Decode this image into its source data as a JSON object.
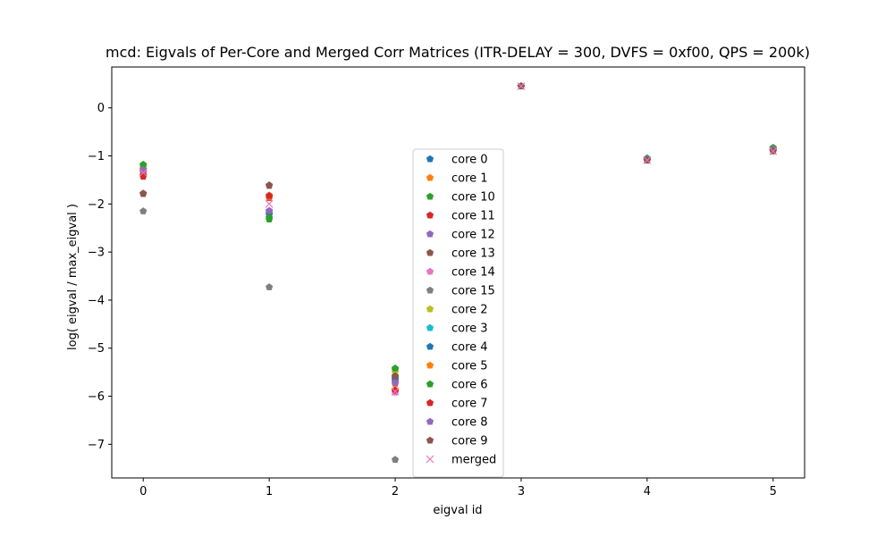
{
  "chart_data": {
    "type": "scatter",
    "title": "mcd: Eigvals of Per-Core and Merged Corr Matrices (ITR-DELAY = 300, DVFS = 0xf00, QPS = 200k)",
    "xlabel": "eigval id",
    "ylabel": "log( eigval / max_eigval )",
    "xlim": [
      -0.25,
      5.25
    ],
    "ylim": [
      -7.7,
      0.85
    ],
    "xticks": [
      0,
      1,
      2,
      3,
      4,
      5
    ],
    "yticks": [
      -7,
      -6,
      -5,
      -4,
      -3,
      -2,
      -1,
      0
    ],
    "grid": false,
    "legend_position": "lower-center",
    "x": [
      0,
      1,
      2,
      3,
      4,
      5
    ],
    "series": [
      {
        "name": "core 0",
        "marker": "pentagon",
        "color": "#1f77b4",
        "values": [
          -1.3,
          -2.2,
          -5.65,
          0.45,
          -1.07,
          -0.85
        ]
      },
      {
        "name": "core 1",
        "marker": "pentagon",
        "color": "#ff7f0e",
        "values": [
          -1.33,
          -1.82,
          -5.7,
          0.45,
          -1.07,
          -0.86
        ]
      },
      {
        "name": "core 10",
        "marker": "pentagon",
        "color": "#2ca02c",
        "values": [
          -1.18,
          -2.32,
          -5.45,
          0.45,
          -1.05,
          -0.83
        ]
      },
      {
        "name": "core 11",
        "marker": "pentagon",
        "color": "#d62728",
        "values": [
          -1.43,
          -1.87,
          -5.9,
          0.45,
          -1.09,
          -0.89
        ]
      },
      {
        "name": "core 12",
        "marker": "pentagon",
        "color": "#9467bd",
        "values": [
          -1.28,
          -2.15,
          -5.68,
          0.45,
          -1.07,
          -0.86
        ]
      },
      {
        "name": "core 13",
        "marker": "pentagon",
        "color": "#8c564b",
        "values": [
          -1.79,
          -1.62,
          -5.6,
          0.45,
          -1.09,
          -0.9
        ]
      },
      {
        "name": "core 14",
        "marker": "pentagon",
        "color": "#e377c2",
        "values": [
          -1.27,
          -2.18,
          -5.92,
          0.45,
          -1.08,
          -0.88
        ]
      },
      {
        "name": "core 15",
        "marker": "pentagon",
        "color": "#7f7f7f",
        "values": [
          -2.15,
          -3.73,
          -7.32,
          0.45,
          -1.07,
          -0.85
        ]
      },
      {
        "name": "core 2",
        "marker": "pentagon",
        "color": "#bcbd22",
        "values": [
          -1.25,
          -2.18,
          -5.5,
          0.45,
          -1.05,
          -0.84
        ]
      },
      {
        "name": "core 3",
        "marker": "pentagon",
        "color": "#17becf",
        "values": [
          -1.3,
          -2.2,
          -5.6,
          0.45,
          -1.06,
          -0.85
        ]
      },
      {
        "name": "core 4",
        "marker": "pentagon",
        "color": "#1f77b4",
        "values": [
          -1.32,
          -2.22,
          -5.62,
          0.45,
          -1.07,
          -0.85
        ]
      },
      {
        "name": "core 5",
        "marker": "pentagon",
        "color": "#ff7f0e",
        "values": [
          -1.35,
          -1.85,
          -5.75,
          0.45,
          -1.08,
          -0.86
        ]
      },
      {
        "name": "core 6",
        "marker": "pentagon",
        "color": "#2ca02c",
        "values": [
          -1.2,
          -2.28,
          -5.42,
          0.45,
          -1.05,
          -0.83
        ]
      },
      {
        "name": "core 7",
        "marker": "pentagon",
        "color": "#d62728",
        "values": [
          -1.4,
          -1.83,
          -5.88,
          0.45,
          -1.09,
          -0.89
        ]
      },
      {
        "name": "core 8",
        "marker": "pentagon",
        "color": "#9467bd",
        "values": [
          -1.29,
          -2.14,
          -5.72,
          0.45,
          -1.07,
          -0.86
        ]
      },
      {
        "name": "core 9",
        "marker": "pentagon",
        "color": "#8c564b",
        "values": [
          -1.78,
          -1.61,
          -5.58,
          0.45,
          -1.09,
          -0.9
        ]
      },
      {
        "name": "merged",
        "marker": "x",
        "color": "#e377c2",
        "values": [
          -1.35,
          -2.0,
          -5.9,
          0.45,
          -1.09,
          -0.9
        ]
      }
    ]
  }
}
